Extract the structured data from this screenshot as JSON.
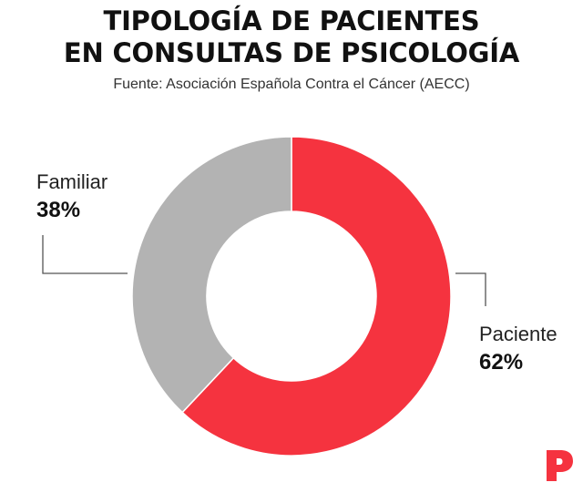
{
  "title_line1": "TIPOLOGÍA DE PACIENTES",
  "title_line2": "EN CONSULTAS DE PSICOLOGÍA",
  "source": "Fuente: Asociación Española Contra el Cáncer (AECC)",
  "chart_data": {
    "type": "pie",
    "style": "donut",
    "title": "TIPOLOGÍA DE PACIENTES EN CONSULTAS DE PSICOLOGÍA",
    "subtitle": "Fuente: Asociación Española Contra el Cáncer (AECC)",
    "slices": [
      {
        "label": "Paciente",
        "value": 62,
        "value_label": "62%",
        "color": "#f5333f"
      },
      {
        "label": "Familiar",
        "value": 38,
        "value_label": "38%",
        "color": "#b3b3b3"
      }
    ],
    "legend": "none"
  },
  "logo": {
    "icon": "brand-p-logo-icon",
    "color": "#f5333f"
  }
}
